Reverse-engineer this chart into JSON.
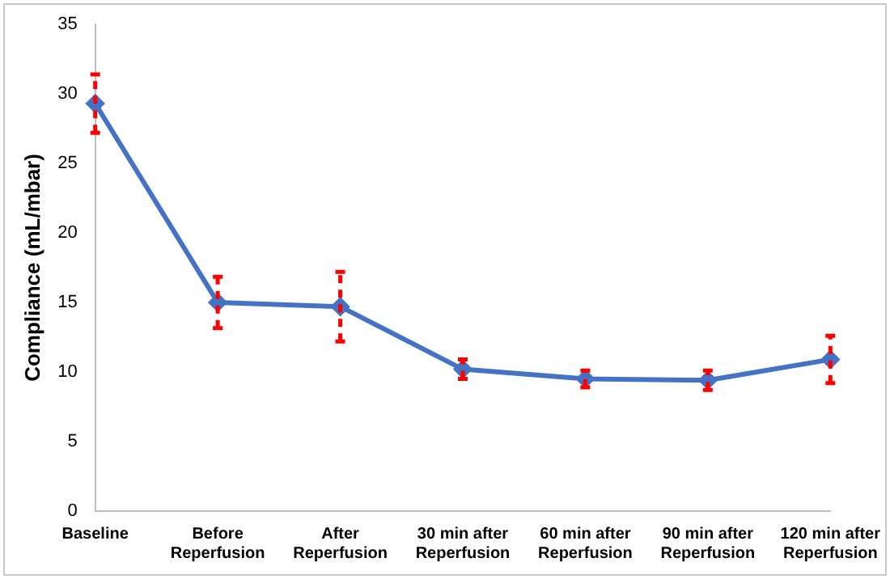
{
  "chart_data": {
    "type": "line",
    "ylabel": "Compliance (mL/mbar)",
    "categories": [
      "Baseline",
      "Before Reperfusion",
      "After Reperfusion",
      "30 min after Reperfusion",
      "60 min after Reperfusion",
      "90 min after Reperfusion",
      "120 min after Reperfusion"
    ],
    "series": [
      {
        "color": "#4472c4",
        "values": [
          29.3,
          15.0,
          14.7,
          10.2,
          9.5,
          9.4,
          10.9
        ],
        "errors": [
          2.1,
          1.85,
          2.5,
          0.7,
          0.6,
          0.7,
          1.7
        ]
      }
    ],
    "ylim": [
      0,
      35
    ],
    "yticks": [
      0,
      5,
      10,
      15,
      20,
      25,
      30,
      35
    ],
    "grid": false,
    "legend": false,
    "marker": "diamond",
    "line_style": "solid"
  }
}
